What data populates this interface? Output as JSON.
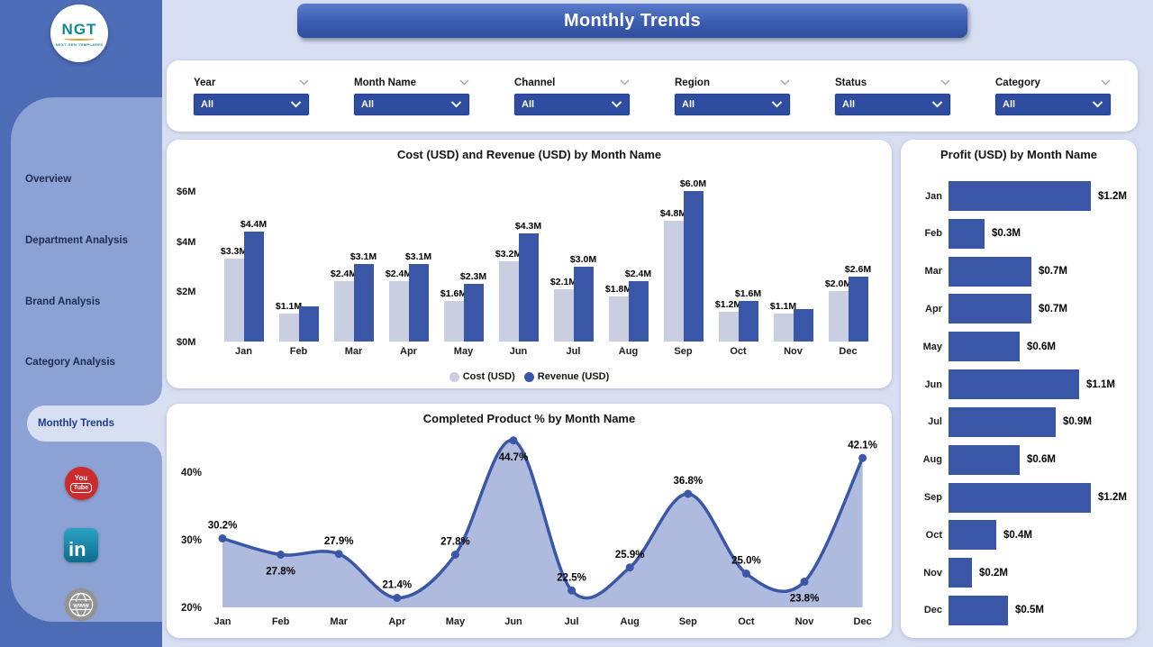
{
  "logo": {
    "text": "NGT",
    "subtext": "NEXT GEN TEMPLATES"
  },
  "header": {
    "title": "Monthly Trends"
  },
  "sidebar": {
    "items": [
      {
        "label": "Overview",
        "active": false
      },
      {
        "label": "Department Analysis",
        "active": false
      },
      {
        "label": "Brand Analysis",
        "active": false
      },
      {
        "label": "Category Analysis",
        "active": false
      },
      {
        "label": "Monthly Trends",
        "active": true
      }
    ],
    "social": {
      "youtube": {
        "line1": "You",
        "line2": "Tube"
      },
      "linkedin": {
        "text": "in"
      },
      "website": {
        "text": "www"
      }
    }
  },
  "filters": [
    {
      "label": "Year",
      "value": "All"
    },
    {
      "label": "Month Name",
      "value": "All"
    },
    {
      "label": "Channel",
      "value": "All"
    },
    {
      "label": "Region",
      "value": "All"
    },
    {
      "label": "Status",
      "value": "All"
    },
    {
      "label": "Category",
      "value": "All"
    }
  ],
  "colors": {
    "sidebar_dark": "#4D6CB6",
    "sidebar_panel": "#8CA2D4",
    "page_bg": "#D9DFF2",
    "banner_blue": "#2E4D9F",
    "slicer_blue": "#2E4CA0",
    "cost_gray": "#C9CFE0",
    "revenue_blue": "#3A57A7",
    "area_fill": "#AFBADF",
    "youtube_red": "#CC2B2B",
    "linkedin_teal": "#17799B"
  },
  "chart_data": [
    {
      "type": "bar",
      "title": "Cost (USD) and Revenue (USD) by Month Name",
      "categories": [
        "Jan",
        "Feb",
        "Mar",
        "Apr",
        "May",
        "Jun",
        "Jul",
        "Aug",
        "Sep",
        "Oct",
        "Nov",
        "Dec"
      ],
      "series": [
        {
          "name": "Cost (USD)",
          "color": "#C9CFE0",
          "values": [
            3.3,
            1.1,
            2.4,
            2.4,
            1.6,
            3.2,
            2.1,
            1.8,
            4.8,
            1.2,
            1.1,
            2.0
          ],
          "labels": [
            "$3.3M",
            "$1.1M",
            "$2.4M",
            "$2.4M",
            "$1.6M",
            "$3.2M",
            "$2.1M",
            "$1.8M",
            "$4.8M",
            "$1.2M",
            "$1.1M",
            "$2.0M"
          ]
        },
        {
          "name": "Revenue (USD)",
          "color": "#3A57A7",
          "values": [
            4.4,
            1.4,
            3.1,
            3.1,
            2.3,
            4.3,
            3.0,
            2.4,
            6.0,
            1.6,
            1.3,
            2.6
          ],
          "labels": [
            "$4.4M",
            "",
            "$3.1M",
            "$3.1M",
            "$2.3M",
            "$4.3M",
            "$3.0M",
            "$2.4M",
            "$6.0M",
            "$1.6M",
            "",
            "$2.6M"
          ]
        }
      ],
      "y_ticks": [
        {
          "v": 0,
          "label": "$0M"
        },
        {
          "v": 2,
          "label": "$2M"
        },
        {
          "v": 4,
          "label": "$4M"
        },
        {
          "v": 6,
          "label": "$6M"
        }
      ],
      "ylim": [
        0,
        6
      ],
      "legend_position": "bottom",
      "grid": false
    },
    {
      "type": "area",
      "title": "Completed Product % by Month Name",
      "x": [
        "Jan",
        "Feb",
        "Mar",
        "Apr",
        "May",
        "Jun",
        "Jul",
        "Aug",
        "Sep",
        "Oct",
        "Nov",
        "Dec"
      ],
      "values": [
        30.2,
        27.8,
        27.9,
        21.4,
        27.8,
        44.7,
        22.5,
        25.9,
        36.8,
        25.0,
        23.8,
        42.1
      ],
      "labels": [
        "30.2%",
        "27.8%",
        "27.9%",
        "21.4%",
        "27.8%",
        "44.7%",
        "22.5%",
        "25.9%",
        "36.8%",
        "25.0%",
        "23.8%",
        "42.1%"
      ],
      "label_pos": [
        "above",
        "below",
        "above",
        "above",
        "above",
        "below",
        "above",
        "above",
        "above",
        "above",
        "below",
        "above"
      ],
      "y_ticks": [
        {
          "v": 20,
          "label": "20%"
        },
        {
          "v": 30,
          "label": "30%"
        },
        {
          "v": 40,
          "label": "40%"
        }
      ],
      "ylim": [
        20,
        46
      ],
      "grid": false
    },
    {
      "type": "bar-horizontal",
      "title": "Profit (USD) by Month Name",
      "categories": [
        "Jan",
        "Feb",
        "Mar",
        "Apr",
        "May",
        "Jun",
        "Jul",
        "Aug",
        "Sep",
        "Oct",
        "Nov",
        "Dec"
      ],
      "values": [
        1.2,
        0.3,
        0.7,
        0.7,
        0.6,
        1.1,
        0.9,
        0.6,
        1.2,
        0.4,
        0.2,
        0.5
      ],
      "labels": [
        "$1.2M",
        "$0.3M",
        "$0.7M",
        "$0.7M",
        "$0.6M",
        "$1.1M",
        "$0.9M",
        "$0.6M",
        "$1.2M",
        "$0.4M",
        "$0.2M",
        "$0.5M"
      ],
      "xlim": [
        0,
        1.25
      ],
      "grid": false
    }
  ]
}
